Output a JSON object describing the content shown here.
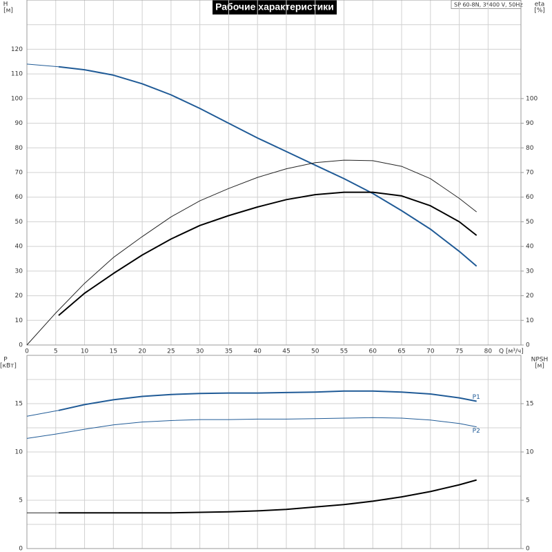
{
  "chart_data": [
    {
      "type": "line",
      "title": "Рабочие характеристики",
      "subtitle": "SP 60-8N, 3*400 V, 50Hz",
      "x_label": "Q [м³/ч]",
      "y_label": "H",
      "y_unit": "[м]",
      "y2_label": "eta",
      "y2_unit": "[%]",
      "xlim": [
        0,
        85.7
      ],
      "xticks": [
        0,
        5,
        10,
        15,
        20,
        25,
        30,
        35,
        40,
        45,
        50,
        55,
        60,
        65,
        70,
        75,
        80
      ],
      "ylim": [
        0,
        140
      ],
      "yticks": [
        0,
        10,
        20,
        30,
        40,
        50,
        60,
        70,
        80,
        90,
        100,
        110,
        120
      ],
      "ygrid_extra": [
        130
      ],
      "y2lim": [
        0,
        140
      ],
      "y2ticks": [
        0,
        10,
        20,
        30,
        40,
        50,
        60,
        70,
        80,
        90,
        100
      ],
      "grid": true,
      "series": [
        {
          "color": "#1f5a96",
          "line_width": 1,
          "x": [
            0,
            5.5
          ],
          "values": [
            114,
            112.9
          ]
        },
        {
          "color": "#1f5a96",
          "line_width": 2,
          "x": [
            5.5,
            10,
            15,
            20,
            25,
            30,
            35,
            40,
            45,
            50,
            55,
            60,
            65,
            70,
            75,
            78
          ],
          "values": [
            112.9,
            111.7,
            109.5,
            106,
            101.5,
            96,
            90,
            84,
            78.5,
            73,
            67.5,
            61.5,
            54.5,
            47,
            38,
            32
          ]
        },
        {
          "color": "#222222",
          "line_width": 1,
          "axis": "y2",
          "x": [
            0,
            5,
            10,
            15,
            20,
            25,
            30,
            35,
            40,
            45,
            50,
            55,
            60,
            65,
            70,
            75,
            78
          ],
          "values": [
            0,
            13,
            25,
            35.5,
            44,
            52,
            58.5,
            63.5,
            68,
            71.5,
            74,
            75,
            74.8,
            72.5,
            67.5,
            59.5,
            54
          ]
        },
        {
          "color": "#000000",
          "line_width": 2,
          "axis": "y2",
          "x": [
            5.5,
            10,
            15,
            20,
            25,
            30,
            35,
            40,
            45,
            50,
            55,
            60,
            65,
            70,
            75,
            78
          ],
          "values": [
            12,
            21,
            29,
            36.5,
            43,
            48.5,
            52.5,
            56,
            59,
            61,
            62,
            62,
            60.5,
            56.5,
            50,
            44.5
          ]
        }
      ]
    },
    {
      "type": "line",
      "y_label": "P",
      "y_unit": "[кВт]",
      "y2_label": "NPSH",
      "y2_unit": "[м]",
      "xlim": [
        0,
        85.7
      ],
      "xticks": [
        0,
        5,
        10,
        15,
        20,
        25,
        30,
        35,
        40,
        45,
        50,
        55,
        60,
        65,
        70,
        75,
        80
      ],
      "ylim": [
        0,
        20
      ],
      "yticks": [
        0,
        5,
        10,
        15
      ],
      "ygrid_extra": [
        2.5,
        7.5,
        12.5,
        17.5
      ],
      "y2lim": [
        0,
        20
      ],
      "y2ticks": [
        0,
        5,
        10,
        15
      ],
      "grid": true,
      "series": [
        {
          "color": "#1f5a96",
          "line_width": 1,
          "x": [
            0,
            5.5
          ],
          "values": [
            13.7,
            14.3
          ]
        },
        {
          "name": "P1",
          "color": "#1f5a96",
          "line_width": 2,
          "x": [
            5.5,
            10,
            15,
            20,
            25,
            30,
            35,
            40,
            45,
            50,
            55,
            60,
            65,
            70,
            75,
            78
          ],
          "values": [
            14.3,
            14.9,
            15.4,
            15.75,
            15.95,
            16.05,
            16.1,
            16.1,
            16.15,
            16.2,
            16.3,
            16.3,
            16.2,
            16,
            15.6,
            15.25
          ]
        },
        {
          "name": "P2",
          "color": "#1f5a96",
          "line_width": 1,
          "x": [
            0,
            5,
            10,
            15,
            20,
            25,
            30,
            35,
            40,
            45,
            50,
            55,
            60,
            65,
            70,
            75,
            78
          ],
          "values": [
            11.4,
            11.85,
            12.35,
            12.8,
            13.1,
            13.25,
            13.35,
            13.35,
            13.4,
            13.4,
            13.45,
            13.5,
            13.55,
            13.5,
            13.3,
            12.95,
            12.6
          ]
        },
        {
          "color": "#222222",
          "line_width": 1,
          "axis": "y2",
          "x": [
            0,
            5.5
          ],
          "values": [
            3.7,
            3.7
          ]
        },
        {
          "color": "#000000",
          "line_width": 2,
          "axis": "y2",
          "x": [
            5.5,
            10,
            15,
            20,
            25,
            30,
            35,
            40,
            45,
            50,
            55,
            60,
            65,
            70,
            75,
            78
          ],
          "values": [
            3.7,
            3.7,
            3.7,
            3.7,
            3.7,
            3.75,
            3.8,
            3.9,
            4.05,
            4.3,
            4.55,
            4.9,
            5.35,
            5.9,
            6.6,
            7.1
          ]
        }
      ]
    }
  ]
}
